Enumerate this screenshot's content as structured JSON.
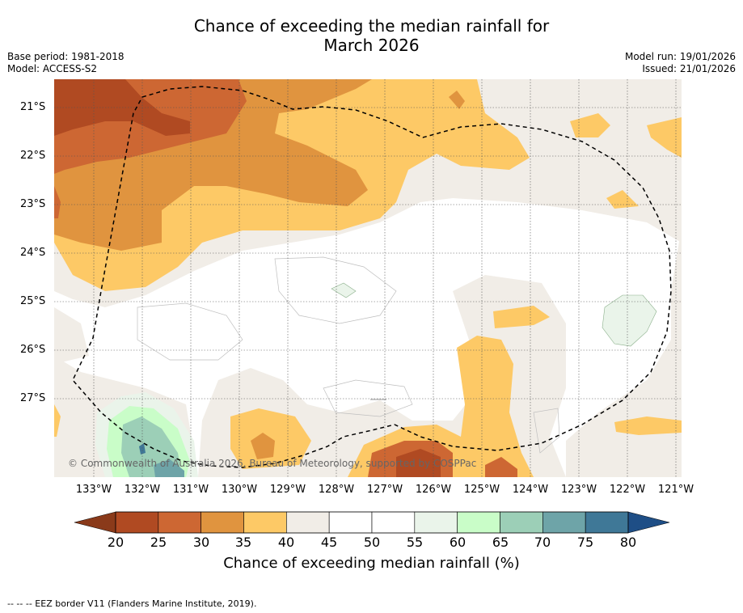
{
  "title_line1": "Chance of exceeding the median rainfall for",
  "title_line2": "March 2026",
  "meta_left": [
    "Base period: 1981-2018",
    "Model: ACCESS-S2"
  ],
  "meta_right": [
    "Model run: 19/01/2026",
    "Issued: 21/01/2026"
  ],
  "lat_labels": [
    "21°S",
    "22°S",
    "23°S",
    "24°S",
    "25°S",
    "26°S",
    "27°S"
  ],
  "lon_labels": [
    "133°W",
    "132°W",
    "131°W",
    "130°W",
    "129°W",
    "128°W",
    "127°W",
    "126°W",
    "125°W",
    "124°W",
    "123°W",
    "122°W",
    "121°W"
  ],
  "copyright": "© Commonwealth of Australia 2026, Bureau of Meteorology, supported by COSPPac",
  "colorbar": {
    "ticks": [
      "20",
      "25",
      "30",
      "35",
      "40",
      "45",
      "50",
      "55",
      "60",
      "65",
      "70",
      "75",
      "80"
    ],
    "colors": [
      "#b04a22",
      "#cd6733",
      "#e0943f",
      "#fdc966",
      "#f1ede7",
      "#ffffff",
      "#ffffff",
      "#eaf4ea",
      "#c9fdc8",
      "#9ccfb7",
      "#6ea4a8",
      "#3f7897"
    ],
    "under_color": "#8a3a1a",
    "over_color": "#1e4e86",
    "title": "Chance of exceeding median rainfall (%)"
  },
  "footer": "--  --  -- EEZ border V11 (Flanders Marine Institute, 2019)."
}
